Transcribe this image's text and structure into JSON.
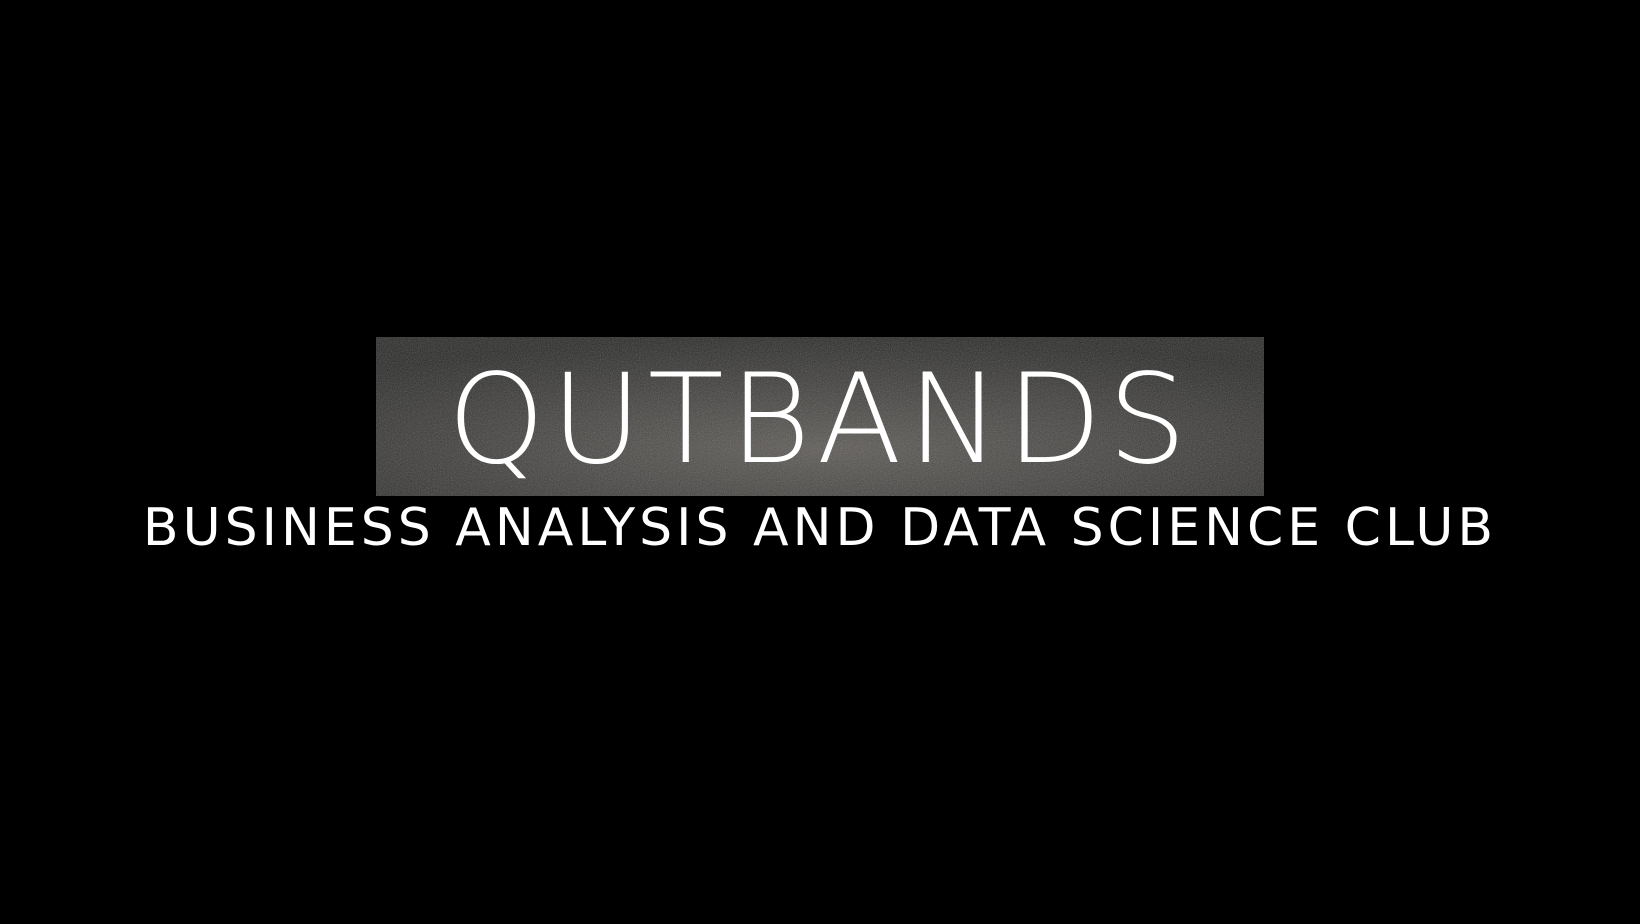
{
  "header": {
    "title": "QUTBANDS",
    "subtitle": "BUSINESS ANALYSIS AND DATA SCIENCE CLUB"
  }
}
